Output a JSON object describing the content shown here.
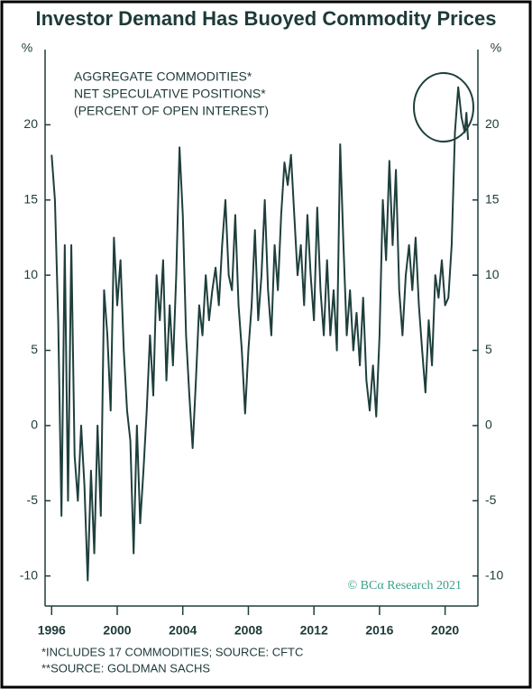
{
  "chart_data": {
    "type": "line",
    "title": "Investor Demand Has Buoyed Commodity Prices",
    "y_label": "%",
    "annotation": [
      "AGGREGATE COMMODITIES*",
      "NET SPECULATIVE POSITIONS*",
      "(PERCENT OF OPEN INTEREST)"
    ],
    "watermark": "© BCα Research 2021",
    "footnotes": [
      "*INCLUDES 17 COMMODITIES; SOURCE: CFTC",
      "**SOURCE: GOLDMAN SACHS"
    ],
    "color": "#1e3f3c",
    "xlim": [
      1995.6,
      2022
    ],
    "xticks": [
      1996,
      2000,
      2004,
      2008,
      2012,
      2016,
      2020
    ],
    "ylim": [
      -12,
      25
    ],
    "yticks": [
      -10,
      -5,
      0,
      5,
      10,
      15,
      20
    ],
    "x": [
      1996.0,
      1996.2,
      1996.4,
      1996.6,
      1996.8,
      1997.0,
      1997.2,
      1997.4,
      1997.6,
      1997.8,
      1998.0,
      1998.2,
      1998.4,
      1998.6,
      1998.8,
      1999.0,
      1999.2,
      1999.4,
      1999.6,
      1999.8,
      2000.0,
      2000.2,
      2000.4,
      2000.6,
      2000.8,
      2001.0,
      2001.2,
      2001.4,
      2001.6,
      2001.8,
      2002.0,
      2002.2,
      2002.4,
      2002.6,
      2002.8,
      2003.0,
      2003.2,
      2003.4,
      2003.6,
      2003.8,
      2004.0,
      2004.2,
      2004.4,
      2004.6,
      2004.8,
      2005.0,
      2005.2,
      2005.4,
      2005.6,
      2005.8,
      2006.0,
      2006.2,
      2006.4,
      2006.6,
      2006.8,
      2007.0,
      2007.2,
      2007.4,
      2007.6,
      2007.8,
      2008.0,
      2008.2,
      2008.4,
      2008.6,
      2008.8,
      2009.0,
      2009.2,
      2009.4,
      2009.6,
      2009.8,
      2010.0,
      2010.2,
      2010.4,
      2010.6,
      2010.8,
      2011.0,
      2011.2,
      2011.4,
      2011.6,
      2011.8,
      2012.0,
      2012.2,
      2012.4,
      2012.6,
      2012.8,
      2013.0,
      2013.2,
      2013.4,
      2013.6,
      2013.8,
      2014.0,
      2014.2,
      2014.4,
      2014.6,
      2014.8,
      2015.0,
      2015.2,
      2015.4,
      2015.6,
      2015.8,
      2016.0,
      2016.2,
      2016.4,
      2016.6,
      2016.8,
      2017.0,
      2017.2,
      2017.4,
      2017.6,
      2017.8,
      2018.0,
      2018.2,
      2018.4,
      2018.6,
      2018.8,
      2019.0,
      2019.2,
      2019.4,
      2019.6,
      2019.8,
      2020.0,
      2020.2,
      2020.4,
      2020.6,
      2020.8,
      2021.0,
      2021.2,
      2021.3,
      2021.4
    ],
    "values": [
      18,
      15,
      7,
      -6,
      12,
      -5,
      12,
      -2,
      -5,
      0,
      -4,
      -10.3,
      -3,
      -8.5,
      0,
      -6,
      9,
      6,
      1,
      12.5,
      8,
      11,
      5,
      1,
      -1,
      -8.5,
      0,
      -6.5,
      -3,
      1,
      6,
      2,
      10,
      7,
      11,
      3,
      8,
      4,
      10,
      18.5,
      14,
      6,
      2,
      -1.5,
      3,
      8,
      6,
      10,
      7,
      9,
      10.5,
      8,
      12,
      15,
      10,
      9,
      14,
      8,
      5,
      0.8,
      5,
      8,
      13,
      7,
      10,
      15,
      9,
      6,
      12,
      9,
      14,
      17.5,
      16,
      18,
      14,
      10,
      12,
      8,
      14,
      10,
      7,
      14.5,
      9,
      6,
      11,
      6,
      9,
      5,
      18.7,
      12,
      6,
      9,
      5,
      7.5,
      4,
      8.5,
      3,
      1,
      4,
      0.6,
      6,
      15,
      11,
      17.6,
      12,
      17,
      9,
      6,
      10,
      12,
      9,
      12.5,
      8,
      5,
      2.2,
      7,
      4,
      10,
      8.5,
      11,
      8,
      8.5,
      12,
      19.5,
      22.5,
      20.5,
      19.5,
      20.8,
      19
    ]
  }
}
